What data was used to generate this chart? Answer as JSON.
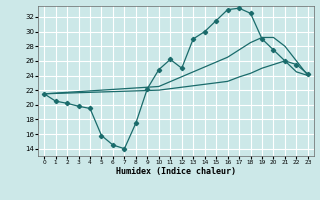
{
  "xlabel": "Humidex (Indice chaleur)",
  "bg_color": "#cce8e8",
  "grid_color": "#ffffff",
  "line_color": "#1a6b6b",
  "xlim": [
    -0.5,
    23.5
  ],
  "ylim": [
    13.0,
    33.5
  ],
  "yticks": [
    14,
    16,
    18,
    20,
    22,
    24,
    26,
    28,
    30,
    32
  ],
  "xticks": [
    0,
    1,
    2,
    3,
    4,
    5,
    6,
    7,
    8,
    9,
    10,
    11,
    12,
    13,
    14,
    15,
    16,
    17,
    18,
    19,
    20,
    21,
    22,
    23
  ],
  "curve1_x": [
    0,
    1,
    2,
    3,
    4,
    5,
    6,
    7,
    8,
    9,
    10,
    11,
    12,
    13,
    14,
    15,
    16,
    17,
    18,
    19,
    20,
    21,
    22,
    23
  ],
  "curve1_y": [
    21.5,
    20.5,
    20.2,
    19.8,
    19.5,
    15.8,
    14.5,
    14.0,
    17.5,
    22.2,
    24.8,
    26.2,
    25.0,
    29.0,
    30.0,
    31.5,
    33.0,
    33.2,
    32.5,
    29.0,
    27.5,
    26.0,
    25.5,
    24.2
  ],
  "curve2_x": [
    0,
    10,
    16,
    17,
    18,
    19,
    20,
    21,
    22,
    23
  ],
  "curve2_y": [
    21.5,
    22.5,
    26.5,
    27.5,
    28.5,
    29.2,
    29.2,
    28.0,
    26.0,
    24.0
  ],
  "curve3_x": [
    0,
    10,
    16,
    17,
    18,
    19,
    20,
    21,
    22,
    23
  ],
  "curve3_y": [
    21.5,
    22.0,
    23.2,
    23.8,
    24.3,
    25.0,
    25.5,
    26.0,
    24.5,
    24.0
  ]
}
